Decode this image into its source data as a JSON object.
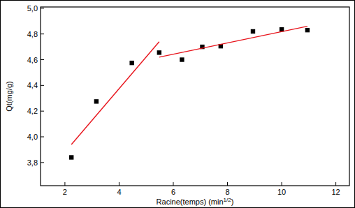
{
  "chart_data": {
    "type": "scatter",
    "x_label": "Racine(temps) (min1/2)",
    "y_label": "Qt(mg/g)",
    "xlim": [
      1.1,
      12.5
    ],
    "ylim": [
      3.62,
      5.01
    ],
    "xticks": [
      2,
      4,
      6,
      8,
      10,
      12
    ],
    "yticks": [
      {
        "value": 3.8,
        "label": "3,8"
      },
      {
        "value": 4.0,
        "label": "4,0"
      },
      {
        "value": 4.2,
        "label": "4,2"
      },
      {
        "value": 4.4,
        "label": "4,4"
      },
      {
        "value": 4.6,
        "label": "4,6"
      },
      {
        "value": 4.8,
        "label": "4,8"
      },
      {
        "value": 5.0,
        "label": "5,0"
      }
    ],
    "grid": false,
    "series": [
      {
        "type": "scatter",
        "color": "#000000",
        "marker": "square",
        "x": [
          2.24,
          3.16,
          4.47,
          5.48,
          6.32,
          7.07,
          7.75,
          8.94,
          10.0,
          10.95
        ],
        "values": [
          3.84,
          4.275,
          4.575,
          4.655,
          4.6,
          4.7,
          4.705,
          4.82,
          4.835,
          4.83
        ]
      },
      {
        "type": "line",
        "color": "#e8141c",
        "line_style": "solid",
        "x": [
          2.24,
          5.48
        ],
        "values": [
          3.94,
          4.74
        ]
      },
      {
        "type": "line",
        "color": "#e8141c",
        "line_style": "solid",
        "x": [
          5.48,
          10.95
        ],
        "values": [
          4.62,
          4.86
        ]
      }
    ]
  }
}
